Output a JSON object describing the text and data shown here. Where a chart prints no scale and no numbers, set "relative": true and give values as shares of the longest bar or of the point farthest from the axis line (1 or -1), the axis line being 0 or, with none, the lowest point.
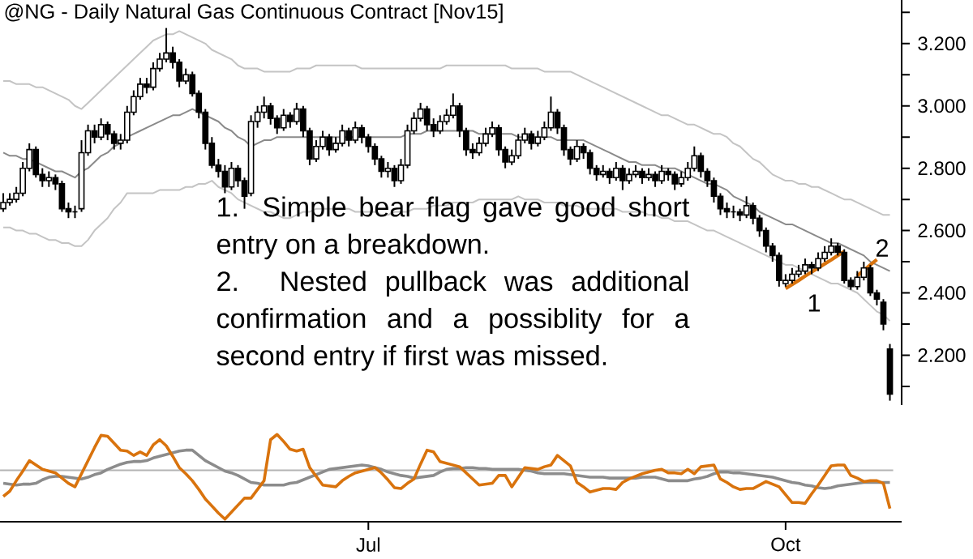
{
  "chart_data": [
    {
      "type": "candlestick",
      "title": "@NG - Daily  Natural Gas Continuous Contract [Nov15]",
      "categories": [
        null,
        null,
        null,
        null,
        null,
        null,
        null,
        null,
        null,
        null,
        null,
        null,
        null,
        null,
        null,
        null,
        null,
        null,
        null,
        null,
        null,
        null,
        null,
        null,
        null,
        null,
        null,
        null,
        null,
        null,
        null,
        null,
        null,
        null,
        null,
        null,
        null,
        null,
        null,
        null,
        null,
        null,
        null,
        null,
        null,
        null,
        null,
        null,
        null,
        null,
        null,
        null,
        null,
        null,
        null,
        null,
        null,
        null,
        null,
        null,
        null,
        null,
        null,
        null,
        null,
        null,
        null,
        null,
        null,
        null,
        null,
        null,
        null,
        null,
        null,
        null,
        null,
        null,
        null,
        null,
        null,
        null,
        null,
        null,
        null,
        null,
        null,
        null,
        null,
        null,
        null,
        null,
        null,
        null,
        null,
        null,
        null,
        null,
        null,
        null,
        null,
        null,
        null,
        null,
        null,
        null,
        null,
        null,
        null,
        null,
        null,
        null,
        null,
        null,
        null,
        null,
        null,
        null,
        null,
        null,
        null,
        null,
        null,
        null,
        null,
        null,
        null,
        null,
        null,
        null,
        null,
        null,
        null,
        null,
        null,
        null,
        null
      ],
      "ohlc": [
        [
          2.67,
          2.72,
          2.66,
          2.69
        ],
        [
          2.69,
          2.72,
          2.68,
          2.7
        ],
        [
          2.7,
          2.74,
          2.69,
          2.72
        ],
        [
          2.72,
          2.82,
          2.71,
          2.8
        ],
        [
          2.8,
          2.88,
          2.79,
          2.86
        ],
        [
          2.86,
          2.87,
          2.77,
          2.78
        ],
        [
          2.78,
          2.8,
          2.74,
          2.76
        ],
        [
          2.76,
          2.79,
          2.74,
          2.77
        ],
        [
          2.77,
          2.78,
          2.73,
          2.75
        ],
        [
          2.75,
          2.76,
          2.66,
          2.67
        ],
        [
          2.67,
          2.69,
          2.64,
          2.66
        ],
        [
          2.66,
          2.68,
          2.64,
          2.66
        ],
        [
          2.67,
          2.89,
          2.66,
          2.85
        ],
        [
          2.85,
          2.94,
          2.84,
          2.92
        ],
        [
          2.92,
          2.94,
          2.88,
          2.9
        ],
        [
          2.9,
          2.96,
          2.89,
          2.94
        ],
        [
          2.94,
          2.95,
          2.89,
          2.91
        ],
        [
          2.91,
          2.92,
          2.86,
          2.88
        ],
        [
          2.88,
          2.91,
          2.86,
          2.89
        ],
        [
          2.89,
          3.0,
          2.88,
          2.98
        ],
        [
          2.98,
          3.05,
          2.97,
          3.03
        ],
        [
          3.03,
          3.09,
          3.02,
          3.07
        ],
        [
          3.07,
          3.09,
          3.04,
          3.06
        ],
        [
          3.06,
          3.14,
          3.05,
          3.12
        ],
        [
          3.12,
          3.17,
          3.11,
          3.15
        ],
        [
          3.15,
          3.25,
          3.14,
          3.17
        ],
        [
          3.17,
          3.19,
          3.12,
          3.14
        ],
        [
          3.14,
          3.15,
          3.06,
          3.08
        ],
        [
          3.08,
          3.12,
          3.07,
          3.1
        ],
        [
          3.1,
          3.11,
          3.03,
          3.04
        ],
        [
          3.04,
          3.05,
          2.96,
          2.98
        ],
        [
          2.98,
          2.99,
          2.86,
          2.88
        ],
        [
          2.88,
          2.9,
          2.8,
          2.81
        ],
        [
          2.81,
          2.83,
          2.77,
          2.79
        ],
        [
          2.79,
          2.81,
          2.72,
          2.74
        ],
        [
          2.74,
          2.82,
          2.73,
          2.8
        ],
        [
          2.8,
          2.81,
          2.74,
          2.76
        ],
        [
          2.76,
          2.77,
          2.67,
          2.71
        ],
        [
          2.72,
          2.97,
          2.71,
          2.95
        ],
        [
          2.95,
          3.0,
          2.93,
          2.98
        ],
        [
          2.98,
          3.03,
          2.96,
          3.0
        ],
        [
          3.0,
          3.01,
          2.94,
          2.96
        ],
        [
          2.96,
          2.97,
          2.91,
          2.93
        ],
        [
          2.93,
          2.99,
          2.92,
          2.97
        ],
        [
          2.97,
          2.98,
          2.93,
          2.95
        ],
        [
          2.95,
          3.01,
          2.94,
          2.99
        ],
        [
          2.99,
          3.0,
          2.9,
          2.92
        ],
        [
          2.92,
          2.93,
          2.81,
          2.83
        ],
        [
          2.83,
          2.89,
          2.82,
          2.87
        ],
        [
          2.87,
          2.92,
          2.86,
          2.9
        ],
        [
          2.9,
          2.91,
          2.84,
          2.86
        ],
        [
          2.86,
          2.9,
          2.85,
          2.88
        ],
        [
          2.88,
          2.94,
          2.87,
          2.92
        ],
        [
          2.92,
          2.93,
          2.87,
          2.89
        ],
        [
          2.89,
          2.95,
          2.88,
          2.93
        ],
        [
          2.93,
          2.94,
          2.88,
          2.9
        ],
        [
          2.9,
          2.91,
          2.85,
          2.87
        ],
        [
          2.87,
          2.88,
          2.81,
          2.83
        ],
        [
          2.83,
          2.84,
          2.77,
          2.79
        ],
        [
          2.79,
          2.82,
          2.77,
          2.8
        ],
        [
          2.8,
          2.81,
          2.74,
          2.76
        ],
        [
          2.76,
          2.83,
          2.75,
          2.81
        ],
        [
          2.81,
          2.94,
          2.8,
          2.92
        ],
        [
          2.92,
          2.98,
          2.91,
          2.96
        ],
        [
          2.96,
          3.01,
          2.95,
          2.99
        ],
        [
          2.99,
          3.0,
          2.92,
          2.94
        ],
        [
          2.94,
          2.96,
          2.9,
          2.92
        ],
        [
          2.92,
          2.97,
          2.91,
          2.95
        ],
        [
          2.95,
          2.99,
          2.94,
          2.97
        ],
        [
          2.97,
          3.04,
          2.96,
          3.0
        ],
        [
          3.0,
          3.01,
          2.9,
          2.92
        ],
        [
          2.92,
          2.93,
          2.84,
          2.86
        ],
        [
          2.86,
          2.88,
          2.83,
          2.85
        ],
        [
          2.85,
          2.9,
          2.84,
          2.88
        ],
        [
          2.88,
          2.93,
          2.87,
          2.91
        ],
        [
          2.91,
          2.95,
          2.9,
          2.93
        ],
        [
          2.93,
          2.94,
          2.84,
          2.86
        ],
        [
          2.86,
          2.87,
          2.8,
          2.82
        ],
        [
          2.82,
          2.86,
          2.81,
          2.84
        ],
        [
          2.84,
          2.91,
          2.83,
          2.89
        ],
        [
          2.89,
          2.93,
          2.88,
          2.91
        ],
        [
          2.91,
          2.92,
          2.86,
          2.88
        ],
        [
          2.88,
          2.92,
          2.87,
          2.9
        ],
        [
          2.9,
          2.95,
          2.89,
          2.93
        ],
        [
          2.93,
          3.03,
          2.92,
          2.98
        ],
        [
          2.98,
          2.99,
          2.91,
          2.93
        ],
        [
          2.93,
          2.94,
          2.84,
          2.86
        ],
        [
          2.86,
          2.87,
          2.81,
          2.83
        ],
        [
          2.83,
          2.89,
          2.82,
          2.87
        ],
        [
          2.87,
          2.88,
          2.83,
          2.85
        ],
        [
          2.85,
          2.86,
          2.78,
          2.8
        ],
        [
          2.8,
          2.81,
          2.76,
          2.78
        ],
        [
          2.78,
          2.81,
          2.77,
          2.79
        ],
        [
          2.79,
          2.8,
          2.75,
          2.77
        ],
        [
          2.77,
          2.82,
          2.76,
          2.8
        ],
        [
          2.8,
          2.81,
          2.73,
          2.76
        ],
        [
          2.76,
          2.8,
          2.75,
          2.78
        ],
        [
          2.78,
          2.81,
          2.77,
          2.79
        ],
        [
          2.79,
          2.8,
          2.75,
          2.77
        ],
        [
          2.77,
          2.8,
          2.76,
          2.78
        ],
        [
          2.78,
          2.79,
          2.74,
          2.76
        ],
        [
          2.76,
          2.81,
          2.75,
          2.79
        ],
        [
          2.79,
          2.8,
          2.76,
          2.78
        ],
        [
          2.78,
          2.79,
          2.73,
          2.75
        ],
        [
          2.75,
          2.79,
          2.74,
          2.77
        ],
        [
          2.77,
          2.82,
          2.76,
          2.8
        ],
        [
          2.8,
          2.87,
          2.79,
          2.84
        ],
        [
          2.84,
          2.85,
          2.77,
          2.79
        ],
        [
          2.79,
          2.8,
          2.74,
          2.76
        ],
        [
          2.76,
          2.77,
          2.69,
          2.71
        ],
        [
          2.71,
          2.72,
          2.65,
          2.67
        ],
        [
          2.67,
          2.69,
          2.64,
          2.66
        ],
        [
          2.66,
          2.68,
          2.64,
          2.66
        ],
        [
          2.66,
          2.67,
          2.63,
          2.65
        ],
        [
          2.65,
          2.71,
          2.64,
          2.68
        ],
        [
          2.68,
          2.69,
          2.62,
          2.64
        ],
        [
          2.64,
          2.65,
          2.58,
          2.6
        ],
        [
          2.6,
          2.61,
          2.53,
          2.55
        ],
        [
          2.55,
          2.56,
          2.5,
          2.52
        ],
        [
          2.52,
          2.53,
          2.42,
          2.44
        ],
        [
          2.43,
          2.46,
          2.42,
          2.44
        ],
        [
          2.44,
          2.48,
          2.43,
          2.46
        ],
        [
          2.46,
          2.49,
          2.45,
          2.47
        ],
        [
          2.47,
          2.51,
          2.46,
          2.49
        ],
        [
          2.49,
          2.5,
          2.46,
          2.48
        ],
        [
          2.48,
          2.53,
          2.47,
          2.51
        ],
        [
          2.51,
          2.55,
          2.5,
          2.53
        ],
        [
          2.53,
          2.575,
          2.52,
          2.55
        ],
        [
          2.55,
          2.56,
          2.52,
          2.53
        ],
        [
          2.53,
          2.54,
          2.43,
          2.44
        ],
        [
          2.44,
          2.45,
          2.41,
          2.42
        ],
        [
          2.42,
          2.47,
          2.41,
          2.45
        ],
        [
          2.45,
          2.5,
          2.44,
          2.48
        ],
        [
          2.48,
          2.49,
          2.39,
          2.4
        ],
        [
          2.4,
          2.41,
          2.36,
          2.38
        ],
        [
          2.37,
          2.38,
          2.28,
          2.3
        ],
        [
          2.22,
          2.236,
          2.054,
          2.075
        ]
      ],
      "series": [
        {
          "type": "line",
          "color": "#c4c4c4",
          "values": [
            3.08,
            3.08,
            3.07,
            3.07,
            3.07,
            3.06,
            3.06,
            3.05,
            3.04,
            3.03,
            3.02,
            3.0,
            2.99,
            3.01,
            3.03,
            3.05,
            3.07,
            3.09,
            3.11,
            3.13,
            3.15,
            3.17,
            3.19,
            3.21,
            3.22,
            3.23,
            3.23,
            3.24,
            3.23,
            3.22,
            3.21,
            3.2,
            3.18,
            3.17,
            3.16,
            3.15,
            3.13,
            3.12,
            3.12,
            3.12,
            3.11,
            3.11,
            3.11,
            3.11,
            3.11,
            3.12,
            3.12,
            3.12,
            3.13,
            3.13,
            3.13,
            3.13,
            3.13,
            3.13,
            3.13,
            3.12,
            3.12,
            3.12,
            3.12,
            3.12,
            3.12,
            3.12,
            3.12,
            3.12,
            3.12,
            3.12,
            3.12,
            3.12,
            3.13,
            3.13,
            3.13,
            3.13,
            3.13,
            3.13,
            3.13,
            3.13,
            3.13,
            3.13,
            3.12,
            3.12,
            3.12,
            3.12,
            3.12,
            3.11,
            3.11,
            3.11,
            3.11,
            3.11,
            3.1,
            3.09,
            3.08,
            3.07,
            3.06,
            3.05,
            3.04,
            3.03,
            3.02,
            3.01,
            3.0,
            2.99,
            2.98,
            2.97,
            2.97,
            2.96,
            2.95,
            2.94,
            2.94,
            2.93,
            2.92,
            2.91,
            2.91,
            2.9,
            2.88,
            2.87,
            2.85,
            2.83,
            2.82,
            2.8,
            2.78,
            2.77,
            2.76,
            2.76,
            2.75,
            2.75,
            2.74,
            2.74,
            2.73,
            2.72,
            2.71,
            2.7,
            2.7,
            2.69,
            2.68,
            2.67,
            2.66,
            2.65,
            2.65
          ]
        },
        {
          "type": "line",
          "color": "#8a8a8a",
          "values": [
            2.85,
            2.84,
            2.84,
            2.83,
            2.83,
            2.82,
            2.81,
            2.8,
            2.79,
            2.79,
            2.78,
            2.77,
            2.79,
            2.8,
            2.82,
            2.84,
            2.85,
            2.87,
            2.88,
            2.9,
            2.91,
            2.92,
            2.93,
            2.94,
            2.95,
            2.96,
            2.97,
            2.97,
            2.98,
            2.99,
            2.98,
            2.97,
            2.96,
            2.95,
            2.93,
            2.92,
            2.9,
            2.89,
            2.87,
            2.88,
            2.89,
            2.89,
            2.9,
            2.9,
            2.9,
            2.9,
            2.9,
            2.9,
            2.9,
            2.9,
            2.9,
            2.9,
            2.9,
            2.9,
            2.9,
            2.9,
            2.9,
            2.9,
            2.9,
            2.9,
            2.9,
            2.9,
            2.91,
            2.91,
            2.91,
            2.92,
            2.92,
            2.92,
            2.92,
            2.92,
            2.92,
            2.92,
            2.92,
            2.91,
            2.91,
            2.91,
            2.91,
            2.91,
            2.91,
            2.9,
            2.9,
            2.9,
            2.9,
            2.9,
            2.9,
            2.89,
            2.89,
            2.89,
            2.89,
            2.89,
            2.88,
            2.87,
            2.86,
            2.85,
            2.84,
            2.83,
            2.82,
            2.82,
            2.81,
            2.81,
            2.81,
            2.8,
            2.8,
            2.8,
            2.79,
            2.78,
            2.77,
            2.76,
            2.75,
            2.75,
            2.74,
            2.73,
            2.71,
            2.7,
            2.69,
            2.68,
            2.66,
            2.65,
            2.64,
            2.63,
            2.62,
            2.62,
            2.61,
            2.6,
            2.59,
            2.58,
            2.57,
            2.56,
            2.56,
            2.55,
            2.54,
            2.53,
            2.52,
            2.5,
            2.49,
            2.48,
            2.47
          ]
        },
        {
          "type": "line",
          "color": "#c4c4c4",
          "values": [
            2.61,
            2.61,
            2.6,
            2.6,
            2.59,
            2.59,
            2.58,
            2.57,
            2.57,
            2.56,
            2.56,
            2.55,
            2.55,
            2.57,
            2.6,
            2.62,
            2.64,
            2.67,
            2.69,
            2.72,
            2.72,
            2.72,
            2.72,
            2.72,
            2.73,
            2.73,
            2.73,
            2.73,
            2.74,
            2.74,
            2.75,
            2.75,
            2.76,
            2.74,
            2.73,
            2.72,
            2.7,
            2.69,
            2.68,
            2.67,
            2.66,
            2.66,
            2.65,
            2.64,
            2.64,
            2.65,
            2.66,
            2.66,
            2.67,
            2.67,
            2.67,
            2.67,
            2.67,
            2.67,
            2.66,
            2.66,
            2.66,
            2.66,
            2.65,
            2.65,
            2.66,
            2.66,
            2.66,
            2.67,
            2.67,
            2.67,
            2.68,
            2.68,
            2.68,
            2.69,
            2.69,
            2.69,
            2.69,
            2.7,
            2.7,
            2.7,
            2.7,
            2.7,
            2.7,
            2.71,
            2.7,
            2.7,
            2.7,
            2.69,
            2.69,
            2.69,
            2.68,
            2.68,
            2.68,
            2.67,
            2.67,
            2.67,
            2.67,
            2.67,
            2.67,
            2.66,
            2.66,
            2.66,
            2.66,
            2.65,
            2.65,
            2.64,
            2.64,
            2.63,
            2.63,
            2.63,
            2.62,
            2.61,
            2.6,
            2.6,
            2.59,
            2.58,
            2.57,
            2.56,
            2.55,
            2.54,
            2.53,
            2.52,
            2.51,
            2.5,
            2.49,
            2.49,
            2.48,
            2.47,
            2.46,
            2.45,
            2.44,
            2.43,
            2.43,
            2.42,
            2.41,
            2.4,
            2.38,
            2.36,
            2.34,
            2.33,
            2.31
          ]
        },
        {
          "type": "line",
          "color": "#d9730d",
          "values": [
            null,
            null,
            null,
            null,
            null,
            null,
            null,
            null,
            null,
            null,
            null,
            null,
            null,
            null,
            null,
            null,
            null,
            null,
            null,
            null,
            null,
            null,
            null,
            null,
            null,
            null,
            null,
            null,
            null,
            null,
            null,
            null,
            null,
            null,
            null,
            null,
            null,
            null,
            null,
            null,
            null,
            null,
            null,
            null,
            null,
            null,
            null,
            null,
            null,
            null,
            null,
            null,
            null,
            null,
            null,
            null,
            null,
            null,
            null,
            null,
            null,
            null,
            null,
            null,
            null,
            null,
            null,
            null,
            null,
            null,
            null,
            null,
            null,
            null,
            null,
            null,
            null,
            null,
            null,
            null,
            null,
            null,
            null,
            null,
            null,
            null,
            null,
            null,
            null,
            null,
            null,
            null,
            null,
            null,
            null,
            null,
            null,
            null,
            null,
            null,
            null,
            null,
            null,
            null,
            null,
            null,
            null,
            null,
            null,
            null,
            null,
            null,
            null,
            null,
            null,
            null,
            null,
            null,
            null,
            null,
            2.414,
            2.427,
            2.44,
            2.454,
            2.467,
            2.48,
            2.493,
            2.506,
            2.52,
            2.533,
            null,
            null,
            null,
            null,
            null,
            null,
            null
          ]
        },
        {
          "type": "line",
          "color": "#d9730d",
          "values": [
            null,
            null,
            null,
            null,
            null,
            null,
            null,
            null,
            null,
            null,
            null,
            null,
            null,
            null,
            null,
            null,
            null,
            null,
            null,
            null,
            null,
            null,
            null,
            null,
            null,
            null,
            null,
            null,
            null,
            null,
            null,
            null,
            null,
            null,
            null,
            null,
            null,
            null,
            null,
            null,
            null,
            null,
            null,
            null,
            null,
            null,
            null,
            null,
            null,
            null,
            null,
            null,
            null,
            null,
            null,
            null,
            null,
            null,
            null,
            null,
            null,
            null,
            null,
            null,
            null,
            null,
            null,
            null,
            null,
            null,
            null,
            null,
            null,
            null,
            null,
            null,
            null,
            null,
            null,
            null,
            null,
            null,
            null,
            null,
            null,
            null,
            null,
            null,
            null,
            null,
            null,
            null,
            null,
            null,
            null,
            null,
            null,
            null,
            null,
            null,
            null,
            null,
            null,
            null,
            null,
            null,
            null,
            null,
            null,
            null,
            null,
            null,
            null,
            null,
            null,
            null,
            null,
            null,
            null,
            null,
            null,
            null,
            null,
            null,
            null,
            null,
            null,
            null,
            null,
            null,
            null,
            2.455,
            2.472,
            2.49,
            2.507,
            null,
            null
          ]
        }
      ],
      "annotations": [
        "1. Simple bear flag gave good short entry on a breakdown.",
        "2.  Nested pullback was additional confirmation and a possiblity for a second entry if first was missed.",
        "1",
        "2"
      ],
      "ylim": [
        2.04,
        3.34
      ],
      "yticks": [
        {
          "value": 2.1,
          "label": null
        },
        {
          "value": 2.2,
          "label": "2.200"
        },
        {
          "value": 2.3,
          "label": null
        },
        {
          "value": 2.4,
          "label": "2.400"
        },
        {
          "value": 2.5,
          "label": null
        },
        {
          "value": 2.6,
          "label": "2.600"
        },
        {
          "value": 2.7,
          "label": null
        },
        {
          "value": 2.8,
          "label": "2.800"
        },
        {
          "value": 2.9,
          "label": null
        },
        {
          "value": 3.0,
          "label": "3.000"
        },
        {
          "value": 3.1,
          "label": null
        },
        {
          "value": 3.2,
          "label": "3.200"
        },
        {
          "value": 3.3,
          "label": null
        }
      ],
      "tick_labels": "y"
    },
    {
      "type": "line",
      "relative": true,
      "tick_labels": "x",
      "categories": [
        null,
        null,
        null,
        null,
        null,
        null,
        null,
        null,
        null,
        null,
        null,
        null,
        null,
        null,
        null,
        null,
        null,
        null,
        null,
        null,
        null,
        null,
        null,
        null,
        null,
        null,
        null,
        null,
        null,
        null,
        null,
        null,
        null,
        null,
        null,
        null,
        null,
        null,
        null,
        null,
        null,
        null,
        null,
        null,
        null,
        null,
        null,
        null,
        null,
        null,
        null,
        null,
        null,
        null,
        null,
        null,
        "Jul",
        null,
        null,
        null,
        null,
        null,
        null,
        null,
        null,
        null,
        null,
        null,
        null,
        null,
        null,
        null,
        null,
        null,
        null,
        null,
        null,
        null,
        null,
        null,
        null,
        null,
        null,
        null,
        null,
        null,
        null,
        null,
        null,
        null,
        null,
        null,
        null,
        null,
        null,
        null,
        null,
        null,
        null,
        null,
        null,
        null,
        null,
        null,
        null,
        null,
        null,
        null,
        null,
        null,
        null,
        null,
        null,
        null,
        null,
        null,
        null,
        null,
        null,
        null,
        "Oct",
        null,
        null,
        null,
        null,
        null,
        null,
        null,
        null,
        null,
        null,
        null,
        null,
        null,
        null,
        null,
        null
      ],
      "ref_lines": [
        {
          "axis": "y",
          "value": 0.59,
          "color": "#b4b4b4"
        }
      ],
      "series": [
        {
          "color": "#8c8c8c",
          "values": [
            0.44,
            0.43,
            0.42,
            0.43,
            0.43,
            0.44,
            0.48,
            0.51,
            0.52,
            0.52,
            0.51,
            0.5,
            0.49,
            0.51,
            0.54,
            0.56,
            0.6,
            0.63,
            0.66,
            0.68,
            0.69,
            0.69,
            0.7,
            0.73,
            0.75,
            0.77,
            0.79,
            0.81,
            0.82,
            0.82,
            0.76,
            0.7,
            0.66,
            0.62,
            0.58,
            0.56,
            0.53,
            0.49,
            0.45,
            0.44,
            0.42,
            0.42,
            0.42,
            0.42,
            0.44,
            0.45,
            0.48,
            0.51,
            0.54,
            0.57,
            0.6,
            0.61,
            0.62,
            0.63,
            0.64,
            0.65,
            0.64,
            0.62,
            0.6,
            0.57,
            0.55,
            0.53,
            0.52,
            0.5,
            0.51,
            0.52,
            0.53,
            0.57,
            0.6,
            0.61,
            0.61,
            0.62,
            0.62,
            0.61,
            0.61,
            0.6,
            0.6,
            0.6,
            0.6,
            0.6,
            0.59,
            0.58,
            0.56,
            0.55,
            0.55,
            0.55,
            0.55,
            0.54,
            0.53,
            0.52,
            0.51,
            0.51,
            0.51,
            0.5,
            0.5,
            0.5,
            0.5,
            0.5,
            0.51,
            0.51,
            0.51,
            0.49,
            0.47,
            0.47,
            0.47,
            0.47,
            0.49,
            0.5,
            0.52,
            0.55,
            0.57,
            0.57,
            0.56,
            0.56,
            0.55,
            0.54,
            0.53,
            0.52,
            0.51,
            0.49,
            0.47,
            0.45,
            0.44,
            0.42,
            0.41,
            0.39,
            0.38,
            0.39,
            0.41,
            0.42,
            0.43,
            0.44,
            0.45,
            0.45,
            0.45,
            0.45,
            0.45
          ]
        },
        {
          "color": "#d9730d",
          "values": [
            0.29,
            0.35,
            0.47,
            0.58,
            0.7,
            0.65,
            0.6,
            0.58,
            0.56,
            0.5,
            0.44,
            0.4,
            0.55,
            0.7,
            0.85,
            0.99,
            0.98,
            0.9,
            0.82,
            0.81,
            0.76,
            0.8,
            0.76,
            0.88,
            0.94,
            0.87,
            0.75,
            0.62,
            0.55,
            0.47,
            0.37,
            0.26,
            0.18,
            0.1,
            0.03,
            0.11,
            0.19,
            0.27,
            0.27,
            0.37,
            0.47,
            0.94,
            1.0,
            0.92,
            0.83,
            0.81,
            0.83,
            0.62,
            0.52,
            0.42,
            0.41,
            0.4,
            0.47,
            0.52,
            0.56,
            0.58,
            0.6,
            0.62,
            0.56,
            0.48,
            0.39,
            0.38,
            0.44,
            0.49,
            0.66,
            0.82,
            0.8,
            0.69,
            0.67,
            0.65,
            0.63,
            0.56,
            0.49,
            0.42,
            0.43,
            0.44,
            0.53,
            0.53,
            0.4,
            0.51,
            0.62,
            0.61,
            0.6,
            0.63,
            0.65,
            0.76,
            0.7,
            0.64,
            0.45,
            0.4,
            0.34,
            0.36,
            0.38,
            0.38,
            0.37,
            0.45,
            0.49,
            0.52,
            0.55,
            0.57,
            0.59,
            0.6,
            0.56,
            0.56,
            0.55,
            0.6,
            0.55,
            0.63,
            0.64,
            0.65,
            0.49,
            0.45,
            0.4,
            0.37,
            0.38,
            0.38,
            0.42,
            0.46,
            0.43,
            0.4,
            0.31,
            0.22,
            0.22,
            0.21,
            0.32,
            0.42,
            0.53,
            0.64,
            0.65,
            0.65,
            0.53,
            0.5,
            0.46,
            0.47,
            0.47,
            0.44,
            0.15
          ]
        }
      ]
    }
  ]
}
